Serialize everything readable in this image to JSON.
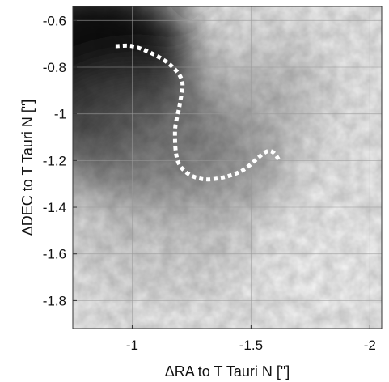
{
  "chart_data": {
    "type": "heatmap",
    "title": "",
    "xlabel": "ΔRA to T Tauri N [\"]",
    "ylabel": "ΔDEC to T Tauri N [\"]",
    "xlim": [
      -0.75,
      -2.05
    ],
    "ylim": [
      -1.92,
      -0.54
    ],
    "x_ticks": [
      -1,
      -1.5,
      -2
    ],
    "x_tick_labels": [
      "-1",
      "-1.5",
      "-2"
    ],
    "y_ticks": [
      -0.6,
      -0.8,
      -1,
      -1.2,
      -1.4,
      -1.6,
      -1.8
    ],
    "y_tick_labels": [
      "-0.6",
      "-0.8",
      "-1",
      "-1.2",
      "-1.4",
      "-1.6",
      "-1.8"
    ],
    "grid": true,
    "colormap": "grayscale",
    "intensity_description": "dark toward upper-left (near origin), lighter toward lower-right",
    "overlay_series": [
      {
        "style": "dotted",
        "color": "#ffffff",
        "x": [
          -0.93,
          -1.0,
          -1.08,
          -1.16,
          -1.21,
          -1.2,
          -1.18,
          -1.2,
          -1.3,
          -1.45,
          -1.57,
          -1.62
        ],
        "y": [
          -0.71,
          -0.71,
          -0.74,
          -0.79,
          -0.86,
          -0.96,
          -1.08,
          -1.22,
          -1.28,
          -1.25,
          -1.16,
          -1.2
        ]
      }
    ]
  }
}
